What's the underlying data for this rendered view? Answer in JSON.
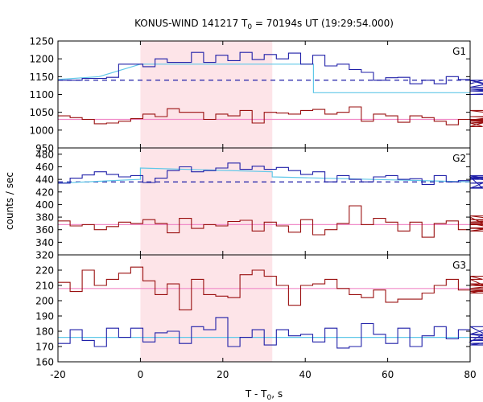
{
  "chart_data": {
    "type": "line",
    "title": "KONUS-WIND 141217 T",
    "title_sub": "0",
    "title_rest": " = 70194s UT (19:29:54.000)",
    "xlabel": "T - T",
    "xlabel_sub": "0",
    "xlabel_rest": ", s",
    "ylabel": "counts / sec",
    "xlim": [
      -20,
      80
    ],
    "xticks": [
      "-20",
      "0",
      "20",
      "40",
      "60",
      "80"
    ],
    "shaded_interval": [
      0,
      32
    ],
    "grid": false,
    "colors": {
      "blue": "#1f1fa8",
      "red": "#9a1010",
      "cyan_fit": "#60c8e8",
      "pink_fit": "#f08ac8",
      "dashed_bg": "#1f1fa8",
      "shade": "#fde4e8"
    },
    "panels": [
      {
        "label": "G1",
        "ylim": [
          950,
          1250
        ],
        "yticks": [
          "950",
          "1000",
          "1050",
          "1100",
          "1150",
          "1200",
          "1250"
        ],
        "series": [
          {
            "color": "blue",
            "x_start": -20,
            "step": 2.944,
            "values": [
              1140,
              1140,
              1145,
              1145,
              1148,
              1185,
              1185,
              1178,
              1200,
              1190,
              1190,
              1218,
              1190,
              1210,
              1195,
              1218,
              1198,
              1212,
              1200,
              1216,
              1185,
              1210,
              1180,
              1185,
              1170,
              1162,
              1140,
              1147,
              1148,
              1130,
              1140,
              1130,
              1150,
              1142,
              1130,
              1140,
              1120,
              1140,
              1110,
              1115,
              1100,
              1110,
              1100,
              1110
            ]
          },
          {
            "color": "red",
            "x_start": -20,
            "step": 2.944,
            "values": [
              1040,
              1035,
              1030,
              1018,
              1020,
              1025,
              1032,
              1045,
              1038,
              1060,
              1050,
              1050,
              1030,
              1045,
              1040,
              1055,
              1020,
              1050,
              1048,
              1045,
              1055,
              1058,
              1045,
              1050,
              1065,
              1025,
              1045,
              1040,
              1022,
              1040,
              1035,
              1025,
              1015,
              1030,
              1020,
              1010,
              1030,
              1020,
              1030,
              1028,
              1055,
              1025,
              1038,
              1030
            ]
          }
        ],
        "fits": [
          {
            "color": "cyan_fit",
            "segments": [
              [
                -20,
                1142
              ],
              [
                -10,
                1150
              ],
              [
                0,
                1185
              ],
              [
                42,
                1185
              ],
              [
                42,
                1105
              ],
              [
                80,
                1105
              ]
            ]
          },
          {
            "color": "pink_fit",
            "segments": [
              [
                -20,
                1030
              ],
              [
                80,
                1030
              ]
            ]
          }
        ],
        "background_dashed": 1140
      },
      {
        "label": "G2",
        "ylim": [
          320,
          490
        ],
        "yticks": [
          "320",
          "340",
          "360",
          "380",
          "400",
          "420",
          "440",
          "460",
          "480"
        ],
        "series": [
          {
            "color": "blue",
            "x_start": -20,
            "step": 2.944,
            "values": [
              434,
              442,
              447,
              452,
              448,
              444,
              446,
              435,
              442,
              454,
              460,
              452,
              454,
              458,
              466,
              456,
              461,
              456,
              459,
              454,
              448,
              452,
              436,
              446,
              440,
              436,
              444,
              446,
              440,
              441,
              432,
              446,
              436,
              438,
              444,
              426,
              442,
              446,
              434,
              440,
              442,
              426,
              444,
              442
            ]
          },
          {
            "color": "red",
            "x_start": -20,
            "step": 2.944,
            "values": [
              374,
              366,
              368,
              360,
              365,
              372,
              370,
              376,
              370,
              355,
              378,
              362,
              368,
              366,
              373,
              375,
              358,
              372,
              366,
              356,
              376,
              352,
              360,
              370,
              398,
              368,
              378,
              372,
              358,
              372,
              348,
              370,
              374,
              360,
              380,
              370,
              363,
              358,
              368,
              376,
              372,
              382,
              362,
              368
            ]
          }
        ],
        "fits": [
          {
            "color": "cyan_fit",
            "segments": [
              [
                -20,
                434
              ],
              [
                0,
                440
              ],
              [
                0,
                458
              ],
              [
                32,
                452
              ],
              [
                32,
                444
              ],
              [
                80,
                436
              ]
            ]
          },
          {
            "color": "pink_fit",
            "segments": [
              [
                -20,
                368
              ],
              [
                80,
                368
              ]
            ]
          }
        ],
        "background_dashed": 436
      },
      {
        "label": "G3",
        "ylim": [
          160,
          230
        ],
        "yticks": [
          "160",
          "170",
          "180",
          "190",
          "200",
          "210",
          "220"
        ],
        "series": [
          {
            "color": "red",
            "x_start": -20,
            "step": 2.944,
            "values": [
              212,
              206,
              220,
              210,
              214,
              218,
              222,
              213,
              204,
              211,
              194,
              214,
              204,
              203,
              202,
              217,
              220,
              216,
              210,
              197,
              210,
              211,
              214,
              208,
              204,
              202,
              207,
              199,
              201,
              201,
              205,
              210,
              214,
              207,
              216,
              214,
              207,
              205,
              211,
              206,
              210,
              210,
              208,
              216
            ]
          },
          {
            "color": "blue",
            "x_start": -20,
            "step": 2.944,
            "values": [
              172,
              181,
              174,
              170,
              182,
              176,
              182,
              173,
              179,
              180,
              172,
              183,
              181,
              189,
              170,
              176,
              181,
              171,
              181,
              177,
              178,
              173,
              182,
              169,
              170,
              185,
              178,
              172,
              182,
              170,
              177,
              183,
              175,
              181,
              173,
              178,
              183,
              171,
              176,
              174,
              178,
              171,
              172,
              174
            ]
          }
        ],
        "fits": [
          {
            "color": "cyan_fit",
            "segments": [
              [
                -20,
                176
              ],
              [
                80,
                176
              ]
            ]
          },
          {
            "color": "pink_fit",
            "segments": [
              [
                -20,
                208
              ],
              [
                80,
                208
              ]
            ]
          }
        ],
        "background_dashed": null
      }
    ]
  }
}
